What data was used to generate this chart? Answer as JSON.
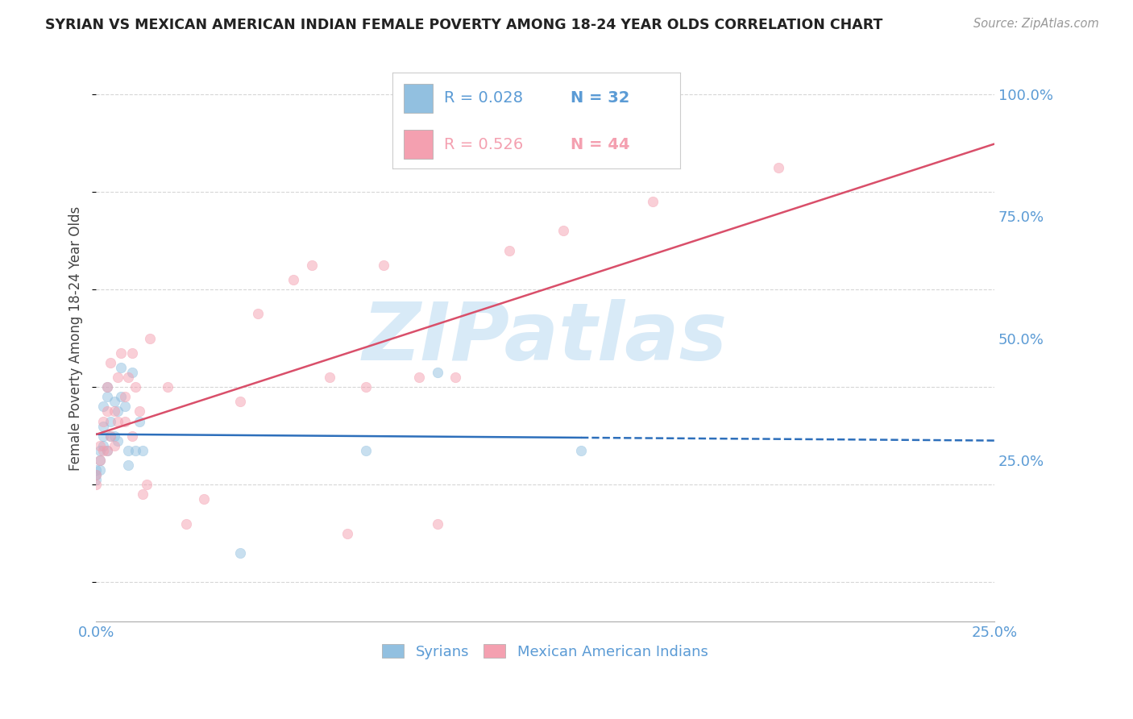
{
  "title": "SYRIAN VS MEXICAN AMERICAN INDIAN FEMALE POVERTY AMONG 18-24 YEAR OLDS CORRELATION CHART",
  "source": "Source: ZipAtlas.com",
  "ylabel": "Female Poverty Among 18-24 Year Olds",
  "xlim": [
    0.0,
    0.25
  ],
  "ylim": [
    -0.08,
    1.08
  ],
  "yticks": [
    0.0,
    0.25,
    0.5,
    0.75,
    1.0
  ],
  "ytick_labels": [
    "",
    "25.0%",
    "50.0%",
    "75.0%",
    "100.0%"
  ],
  "xticks": [
    0.0,
    0.05,
    0.1,
    0.15,
    0.2,
    0.25
  ],
  "xtick_labels": [
    "0.0%",
    "",
    "",
    "",
    "",
    "25.0%"
  ],
  "title_color": "#222222",
  "axis_color": "#5b9bd5",
  "watermark_text": "ZIPatlas",
  "watermark_color": "#d8eaf7",
  "legend_r1": "0.028",
  "legend_n1": "32",
  "legend_r2": "0.526",
  "legend_n2": "44",
  "series1_color": "#92c0e0",
  "series2_color": "#f4a0b0",
  "series1_label": "Syrians",
  "series2_label": "Mexican American Indians",
  "trendline1_color": "#2d6fbb",
  "trendline2_color": "#d94f6a",
  "syrian_x": [
    0.0,
    0.0,
    0.0,
    0.001,
    0.001,
    0.001,
    0.002,
    0.002,
    0.002,
    0.002,
    0.003,
    0.003,
    0.003,
    0.004,
    0.004,
    0.005,
    0.005,
    0.006,
    0.006,
    0.007,
    0.007,
    0.008,
    0.009,
    0.009,
    0.01,
    0.011,
    0.012,
    0.013,
    0.04,
    0.075,
    0.095,
    0.135
  ],
  "syrian_y": [
    0.23,
    0.22,
    0.21,
    0.27,
    0.25,
    0.23,
    0.36,
    0.32,
    0.3,
    0.28,
    0.4,
    0.38,
    0.27,
    0.33,
    0.3,
    0.37,
    0.3,
    0.35,
    0.29,
    0.44,
    0.38,
    0.36,
    0.27,
    0.24,
    0.43,
    0.27,
    0.33,
    0.27,
    0.06,
    0.27,
    0.43,
    0.27
  ],
  "mexican_x": [
    0.0,
    0.0,
    0.001,
    0.001,
    0.002,
    0.002,
    0.003,
    0.003,
    0.003,
    0.004,
    0.004,
    0.005,
    0.005,
    0.006,
    0.006,
    0.007,
    0.008,
    0.008,
    0.009,
    0.01,
    0.01,
    0.011,
    0.012,
    0.013,
    0.014,
    0.015,
    0.02,
    0.025,
    0.03,
    0.04,
    0.045,
    0.055,
    0.06,
    0.065,
    0.07,
    0.075,
    0.08,
    0.09,
    0.095,
    0.1,
    0.115,
    0.13,
    0.155,
    0.19
  ],
  "mexican_y": [
    0.22,
    0.2,
    0.28,
    0.25,
    0.33,
    0.27,
    0.4,
    0.35,
    0.27,
    0.45,
    0.3,
    0.35,
    0.28,
    0.42,
    0.33,
    0.47,
    0.38,
    0.33,
    0.42,
    0.47,
    0.3,
    0.4,
    0.35,
    0.18,
    0.2,
    0.5,
    0.4,
    0.12,
    0.17,
    0.37,
    0.55,
    0.62,
    0.65,
    0.42,
    0.1,
    0.4,
    0.65,
    0.42,
    0.12,
    0.42,
    0.68,
    0.72,
    0.78,
    0.85
  ],
  "background_color": "#ffffff",
  "grid_color": "#cccccc",
  "dot_size": 80,
  "dot_alpha": 0.5
}
